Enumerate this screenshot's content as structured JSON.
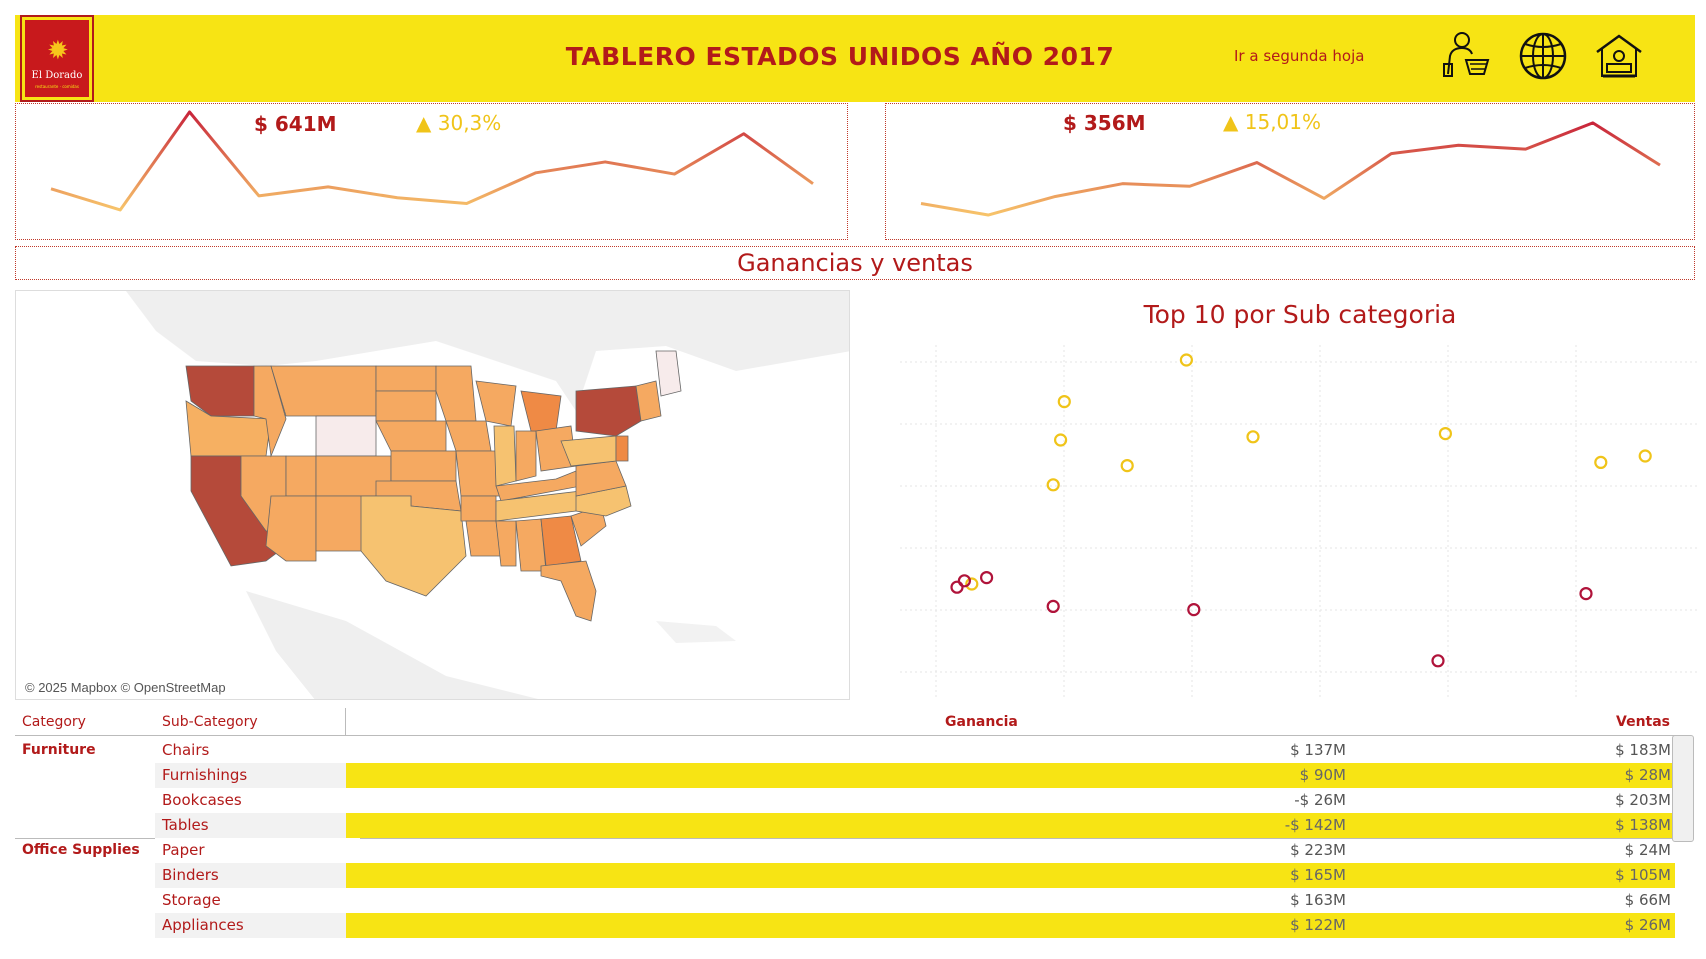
{
  "header": {
    "logo_brand": "El Dorado",
    "logo_tag": "restaurante · comidas",
    "title": "TABLERO ESTADOS UNIDOS AÑO 2017",
    "goto_link": "Ir a segunda hoja",
    "icons": [
      "shopper-cart-icon",
      "globe-icon",
      "home-office-icon"
    ],
    "bg_color": "#f7e414",
    "accent_color": "#b21a1a"
  },
  "kpi_left": {
    "value": "$ 641M",
    "change": "30,3%",
    "change_icon": "triangle-up-icon",
    "series": [
      55,
      22,
      175,
      44,
      58,
      41,
      32,
      80,
      97,
      78,
      141,
      63
    ]
  },
  "kpi_right": {
    "value": "$ 356M",
    "change": "15,01%",
    "change_icon": "triangle-up-icon",
    "series": [
      32,
      14,
      43,
      63,
      59,
      96,
      40,
      110,
      123,
      117,
      158,
      92
    ]
  },
  "section_title": "Ganancias y ventas",
  "map": {
    "attribution": "© 2025 Mapbox © OpenStreetMap"
  },
  "chart_data": {
    "type": "scatter",
    "title": "Top 10 por Sub categoria",
    "series": [
      {
        "color": "#f0c419",
        "points": [
          [
            0.07,
            0.3
          ],
          [
            0.18,
            0.61
          ],
          [
            0.19,
            0.75
          ],
          [
            0.195,
            0.87
          ],
          [
            0.28,
            0.67
          ],
          [
            0.36,
            1.0
          ],
          [
            0.45,
            0.76
          ],
          [
            0.71,
            0.77
          ],
          [
            0.92,
            0.68
          ],
          [
            0.98,
            0.7
          ]
        ]
      },
      {
        "color": "#b0133a",
        "points": [
          [
            0.05,
            0.29
          ],
          [
            0.06,
            0.31
          ],
          [
            0.09,
            0.32
          ],
          [
            0.18,
            0.23
          ],
          [
            0.37,
            0.22
          ],
          [
            0.7,
            0.06
          ],
          [
            0.9,
            0.27
          ]
        ]
      }
    ]
  },
  "table": {
    "headers": {
      "category": "Category",
      "subcategory": "Sub-Category",
      "ganancia": "Ganancia",
      "ventas": "Ventas"
    },
    "rows": [
      {
        "category": "Furniture",
        "sub": "Chairs",
        "ganancia": "$ 137M",
        "ventas": "$ 183M"
      },
      {
        "category": "",
        "sub": "Furnishings",
        "ganancia": "$ 90M",
        "ventas": "$ 28M"
      },
      {
        "category": "",
        "sub": "Bookcases",
        "ganancia": "-$ 26M",
        "ventas": "$ 203M"
      },
      {
        "category": "",
        "sub": "Tables",
        "ganancia": "-$ 142M",
        "ventas": "$ 138M"
      },
      {
        "category": "Office Supplies",
        "sub": "Paper",
        "ganancia": "$ 223M",
        "ventas": "$ 24M"
      },
      {
        "category": "",
        "sub": "Binders",
        "ganancia": "$ 165M",
        "ventas": "$ 105M"
      },
      {
        "category": "",
        "sub": "Storage",
        "ganancia": "$ 163M",
        "ventas": "$ 66M"
      },
      {
        "category": "",
        "sub": "Appliances",
        "ganancia": "$ 122M",
        "ventas": "$ 26M"
      }
    ]
  }
}
